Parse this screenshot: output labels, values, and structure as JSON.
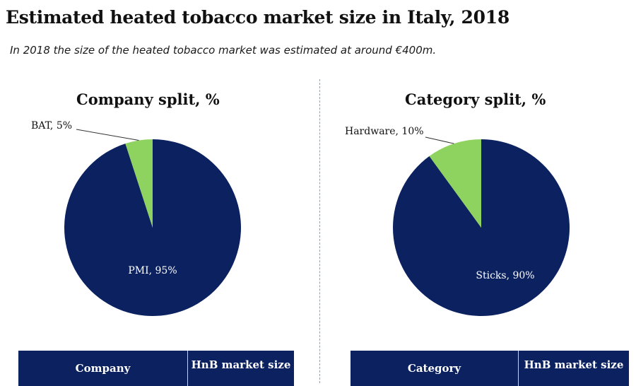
{
  "title": "Estimated heated tobacco market size in Italy, 2018",
  "subtitle": "In 2018 the size of the heated tobacco market was estimated at around €400m.",
  "colors": {
    "navy": "#0b2160",
    "green": "#8ed35f"
  },
  "chart_data": [
    {
      "type": "pie",
      "title": "Company split, %",
      "slices": [
        {
          "label": "BAT",
          "value": 5,
          "color": "#8ed35f",
          "text": "BAT, 5%"
        },
        {
          "label": "PMI",
          "value": 95,
          "color": "#0b2160",
          "text": "PMI, 95%"
        }
      ]
    },
    {
      "type": "pie",
      "title": "Category split, %",
      "slices": [
        {
          "label": "Hardware",
          "value": 10,
          "color": "#8ed35f",
          "text": "Hardware, 10%"
        },
        {
          "label": "Sticks",
          "value": 90,
          "color": "#0b2160",
          "text": "Sticks, 90%"
        }
      ]
    }
  ],
  "tables": [
    {
      "headers": [
        "Company",
        "HnB market size"
      ]
    },
    {
      "headers": [
        "Category",
        "HnB market size"
      ]
    }
  ]
}
